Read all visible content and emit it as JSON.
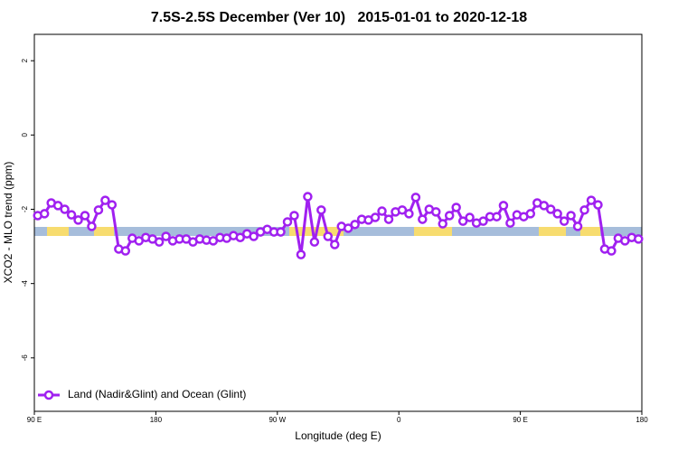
{
  "chart_data": {
    "type": "line",
    "title": "7.5S-2.5S December (Ver 10)   2015-01-01 to 2020-12-18",
    "xlabel": "Longitude (deg E)",
    "ylabel": "XCO2 - MLO trend (ppm)",
    "xlim": [
      90,
      540
    ],
    "ylim": [
      -7.44,
      2.71
    ],
    "xticks": [
      {
        "value": 90,
        "label": "90 E"
      },
      180,
      {
        "value": 270,
        "label": "90 W"
      },
      {
        "value": 360,
        "label": "0"
      },
      {
        "value": 450,
        "label": "90 E"
      },
      {
        "value": 540,
        "label": "180"
      }
    ],
    "yticks": [
      -6,
      -4,
      -2,
      0,
      2
    ],
    "legend": "bottom-left",
    "x": [
      92.5,
      97.5,
      102.5,
      107.5,
      112.5,
      117.5,
      122.5,
      127.5,
      132.5,
      137.5,
      142.5,
      147.5,
      152.5,
      157.5,
      162.5,
      167.5,
      172.5,
      177.5,
      182.5,
      187.5,
      192.5,
      197.5,
      202.5,
      207.5,
      212.5,
      217.5,
      222.5,
      227.5,
      232.5,
      237.5,
      242.5,
      247.5,
      252.5,
      257.5,
      262.5,
      267.5,
      272.5,
      277.5,
      282.5,
      287.5,
      292.5,
      297.5,
      302.5,
      307.5,
      312.5,
      317.5,
      322.5,
      327.5,
      332.5,
      337.5,
      342.5,
      347.5,
      352.5,
      357.5,
      362.5,
      367.5,
      372.5,
      377.5,
      382.5,
      387.5,
      392.5,
      397.5,
      402.5,
      407.5,
      412.5,
      417.5,
      422.5,
      427.5,
      432.5,
      437.5,
      442.5,
      447.5,
      452.5,
      457.5,
      462.5,
      467.5,
      472.5,
      477.5,
      482.5,
      487.5,
      492.5,
      497.5,
      502.5,
      507.5,
      512.5,
      517.5,
      522.5,
      527.5,
      532.5,
      537.5
    ],
    "series": [
      {
        "name": "Land (Nadir&Glint) and Ocean (Glint)",
        "color": "#a020f0",
        "values": [
          -2.17,
          -2.12,
          -1.83,
          -1.9,
          -2.0,
          -2.15,
          -2.29,
          -2.17,
          -2.46,
          -2.02,
          -1.76,
          -1.88,
          -3.07,
          -3.12,
          -2.78,
          -2.85,
          -2.76,
          -2.8,
          -2.88,
          -2.73,
          -2.85,
          -2.8,
          -2.8,
          -2.88,
          -2.8,
          -2.83,
          -2.85,
          -2.76,
          -2.78,
          -2.71,
          -2.76,
          -2.66,
          -2.73,
          -2.61,
          -2.54,
          -2.61,
          -2.61,
          -2.34,
          -2.17,
          -3.22,
          -1.66,
          -2.88,
          -2.02,
          -2.73,
          -2.95,
          -2.46,
          -2.51,
          -2.41,
          -2.27,
          -2.29,
          -2.22,
          -2.05,
          -2.27,
          -2.07,
          -2.02,
          -2.12,
          -1.68,
          -2.27,
          -2.0,
          -2.07,
          -2.39,
          -2.17,
          -1.95,
          -2.32,
          -2.22,
          -2.37,
          -2.32,
          -2.2,
          -2.2,
          -1.9,
          -2.37,
          -2.15,
          -2.2,
          -2.12,
          -1.83,
          -1.9,
          -2.0,
          -2.12,
          -2.32,
          -2.17,
          -2.46,
          -2.02,
          -1.76,
          -1.88,
          -3.07,
          -3.12,
          -2.78,
          -2.85,
          -2.76,
          -2.8
        ]
      }
    ]
  }
}
